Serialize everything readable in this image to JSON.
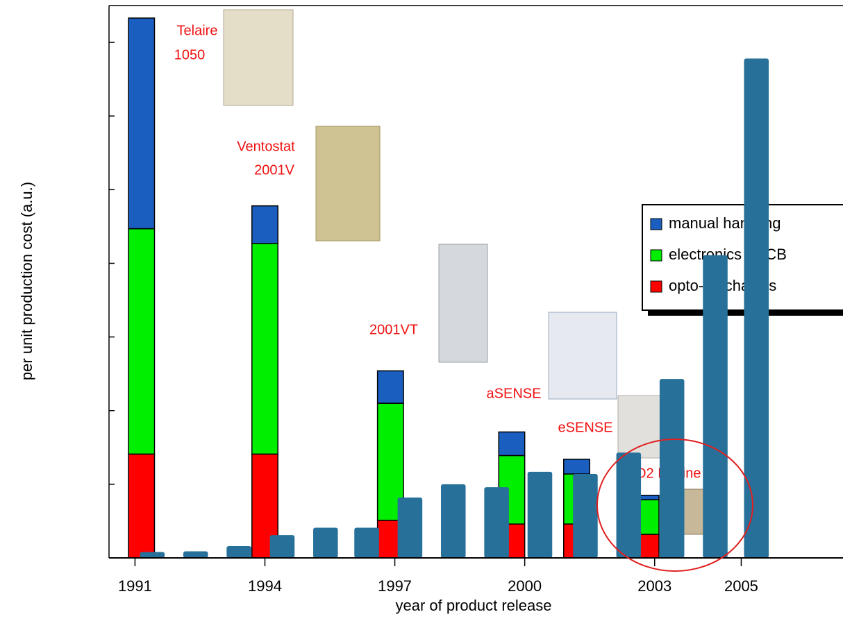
{
  "chart_data": {
    "type": "bar",
    "y_label": "per unit production cost (a.u.)",
    "x_label": "year of product release",
    "xlim": [
      1990.4,
      2007.35
    ],
    "xticks": [
      1991,
      1994,
      1997,
      2000,
      2003,
      2005
    ],
    "ylim": [
      0,
      7.5
    ],
    "yticks": [
      0,
      1,
      2,
      3,
      4,
      5,
      6,
      7
    ],
    "stacked": true,
    "legend": "right",
    "series": [
      {
        "name": "opto-mechanics",
        "color": "#ff0000",
        "x": [
          1991.15,
          1994.0,
          1996.9,
          1999.7,
          2001.2,
          2002.8
        ],
        "values": [
          1.41,
          1.41,
          0.51,
          0.46,
          0.46,
          0.32
        ]
      },
      {
        "name": "electronics - PCB",
        "color": "#00ee00",
        "x": [
          1991.15,
          1994.0,
          1996.9,
          1999.7,
          2001.2,
          2002.8
        ],
        "values": [
          3.06,
          2.86,
          1.59,
          0.93,
          0.68,
          0.47
        ]
      },
      {
        "name": "manual handling",
        "color": "#1a5fbf",
        "x": [
          1991.15,
          1994.0,
          1996.9,
          1999.7,
          2001.2,
          2002.8
        ],
        "values": [
          2.86,
          0.51,
          0.44,
          0.32,
          0.2,
          0.06
        ]
      }
    ],
    "overlay_series": {
      "color": "#27709a",
      "x": [
        1991.4,
        1992.4,
        1993.4,
        1994.4,
        1995.4,
        1996.35,
        1997.35,
        1998.35,
        1999.35,
        2000.35,
        2001.4,
        2002.4,
        2003.4,
        2004.4,
        2005.35
      ],
      "values": [
        0.08,
        0.09,
        0.16,
        0.31,
        0.41,
        0.41,
        0.82,
        1.0,
        0.96,
        1.17,
        1.14,
        1.43,
        2.43,
        4.11,
        6.78
      ]
    },
    "annotations": [
      [
        "Telaire",
        "1050"
      ],
      [
        "Ventostat",
        "2001V"
      ],
      [
        "2001VT"
      ],
      [
        "aSENSE"
      ],
      [
        "eSENSE"
      ],
      [
        "CO2 Engine"
      ]
    ]
  }
}
